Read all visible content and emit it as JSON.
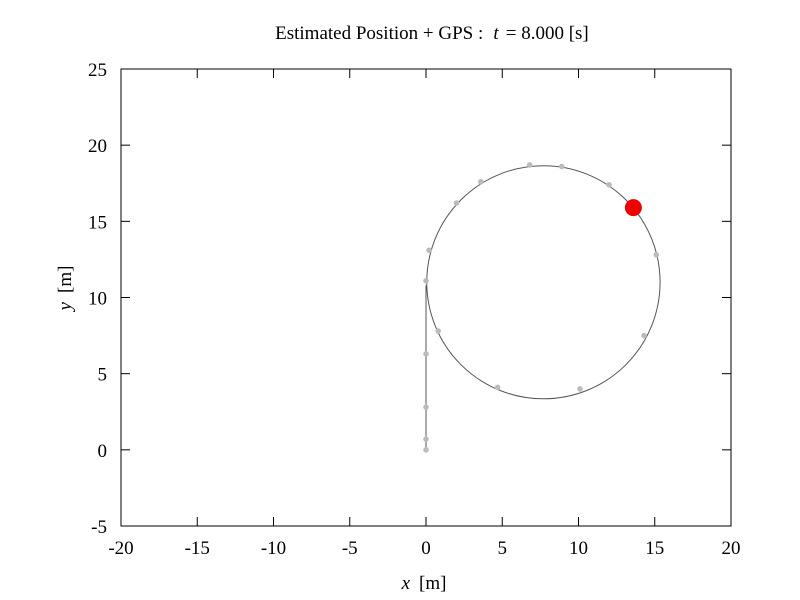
{
  "chart_data": {
    "type": "scatter",
    "title": {
      "prefix": "Estimated Position + GPS : ",
      "var": "t",
      "suffix": " = 8.000 [s]"
    },
    "xlabel": {
      "var": "x",
      "unit": "[m]"
    },
    "ylabel": {
      "var": "y",
      "unit": "[m]"
    },
    "xlim": [
      -20,
      20
    ],
    "ylim": [
      -5,
      25
    ],
    "xticks": [
      -20,
      -15,
      -10,
      -5,
      0,
      5,
      10,
      15,
      20
    ],
    "yticks": [
      -5,
      0,
      5,
      10,
      15,
      20,
      25
    ],
    "grid": false,
    "colors": {
      "trajectory": "#555555",
      "gps": "#bbbbbb",
      "current": "#ee0000",
      "frame": "#000000"
    },
    "trajectory": {
      "straight": {
        "x0": 0,
        "y0": 0,
        "x1": 0,
        "y1": 10.8
      },
      "circle": {
        "cx": 7.7,
        "cy": 11.0,
        "r": 7.65
      }
    },
    "series": [
      {
        "values": [
          {
            "x": 0,
            "y": 0
          },
          {
            "x": 0,
            "y": 0.7
          },
          {
            "x": 0,
            "y": 2.8
          },
          {
            "x": 0,
            "y": 6.3
          },
          {
            "x": 0,
            "y": 11.1
          },
          {
            "x": 0.8,
            "y": 7.8
          },
          {
            "x": 0.2,
            "y": 13.1
          },
          {
            "x": 2.0,
            "y": 16.2
          },
          {
            "x": 3.6,
            "y": 17.6
          },
          {
            "x": 6.8,
            "y": 18.7
          },
          {
            "x": 8.9,
            "y": 18.6
          },
          {
            "x": 12.0,
            "y": 17.4
          },
          {
            "x": 15.1,
            "y": 12.8
          },
          {
            "x": 14.3,
            "y": 7.5
          },
          {
            "x": 10.1,
            "y": 4.0
          },
          {
            "x": 4.7,
            "y": 4.1
          }
        ]
      }
    ],
    "current_position": {
      "x": 13.6,
      "y": 15.9
    }
  }
}
